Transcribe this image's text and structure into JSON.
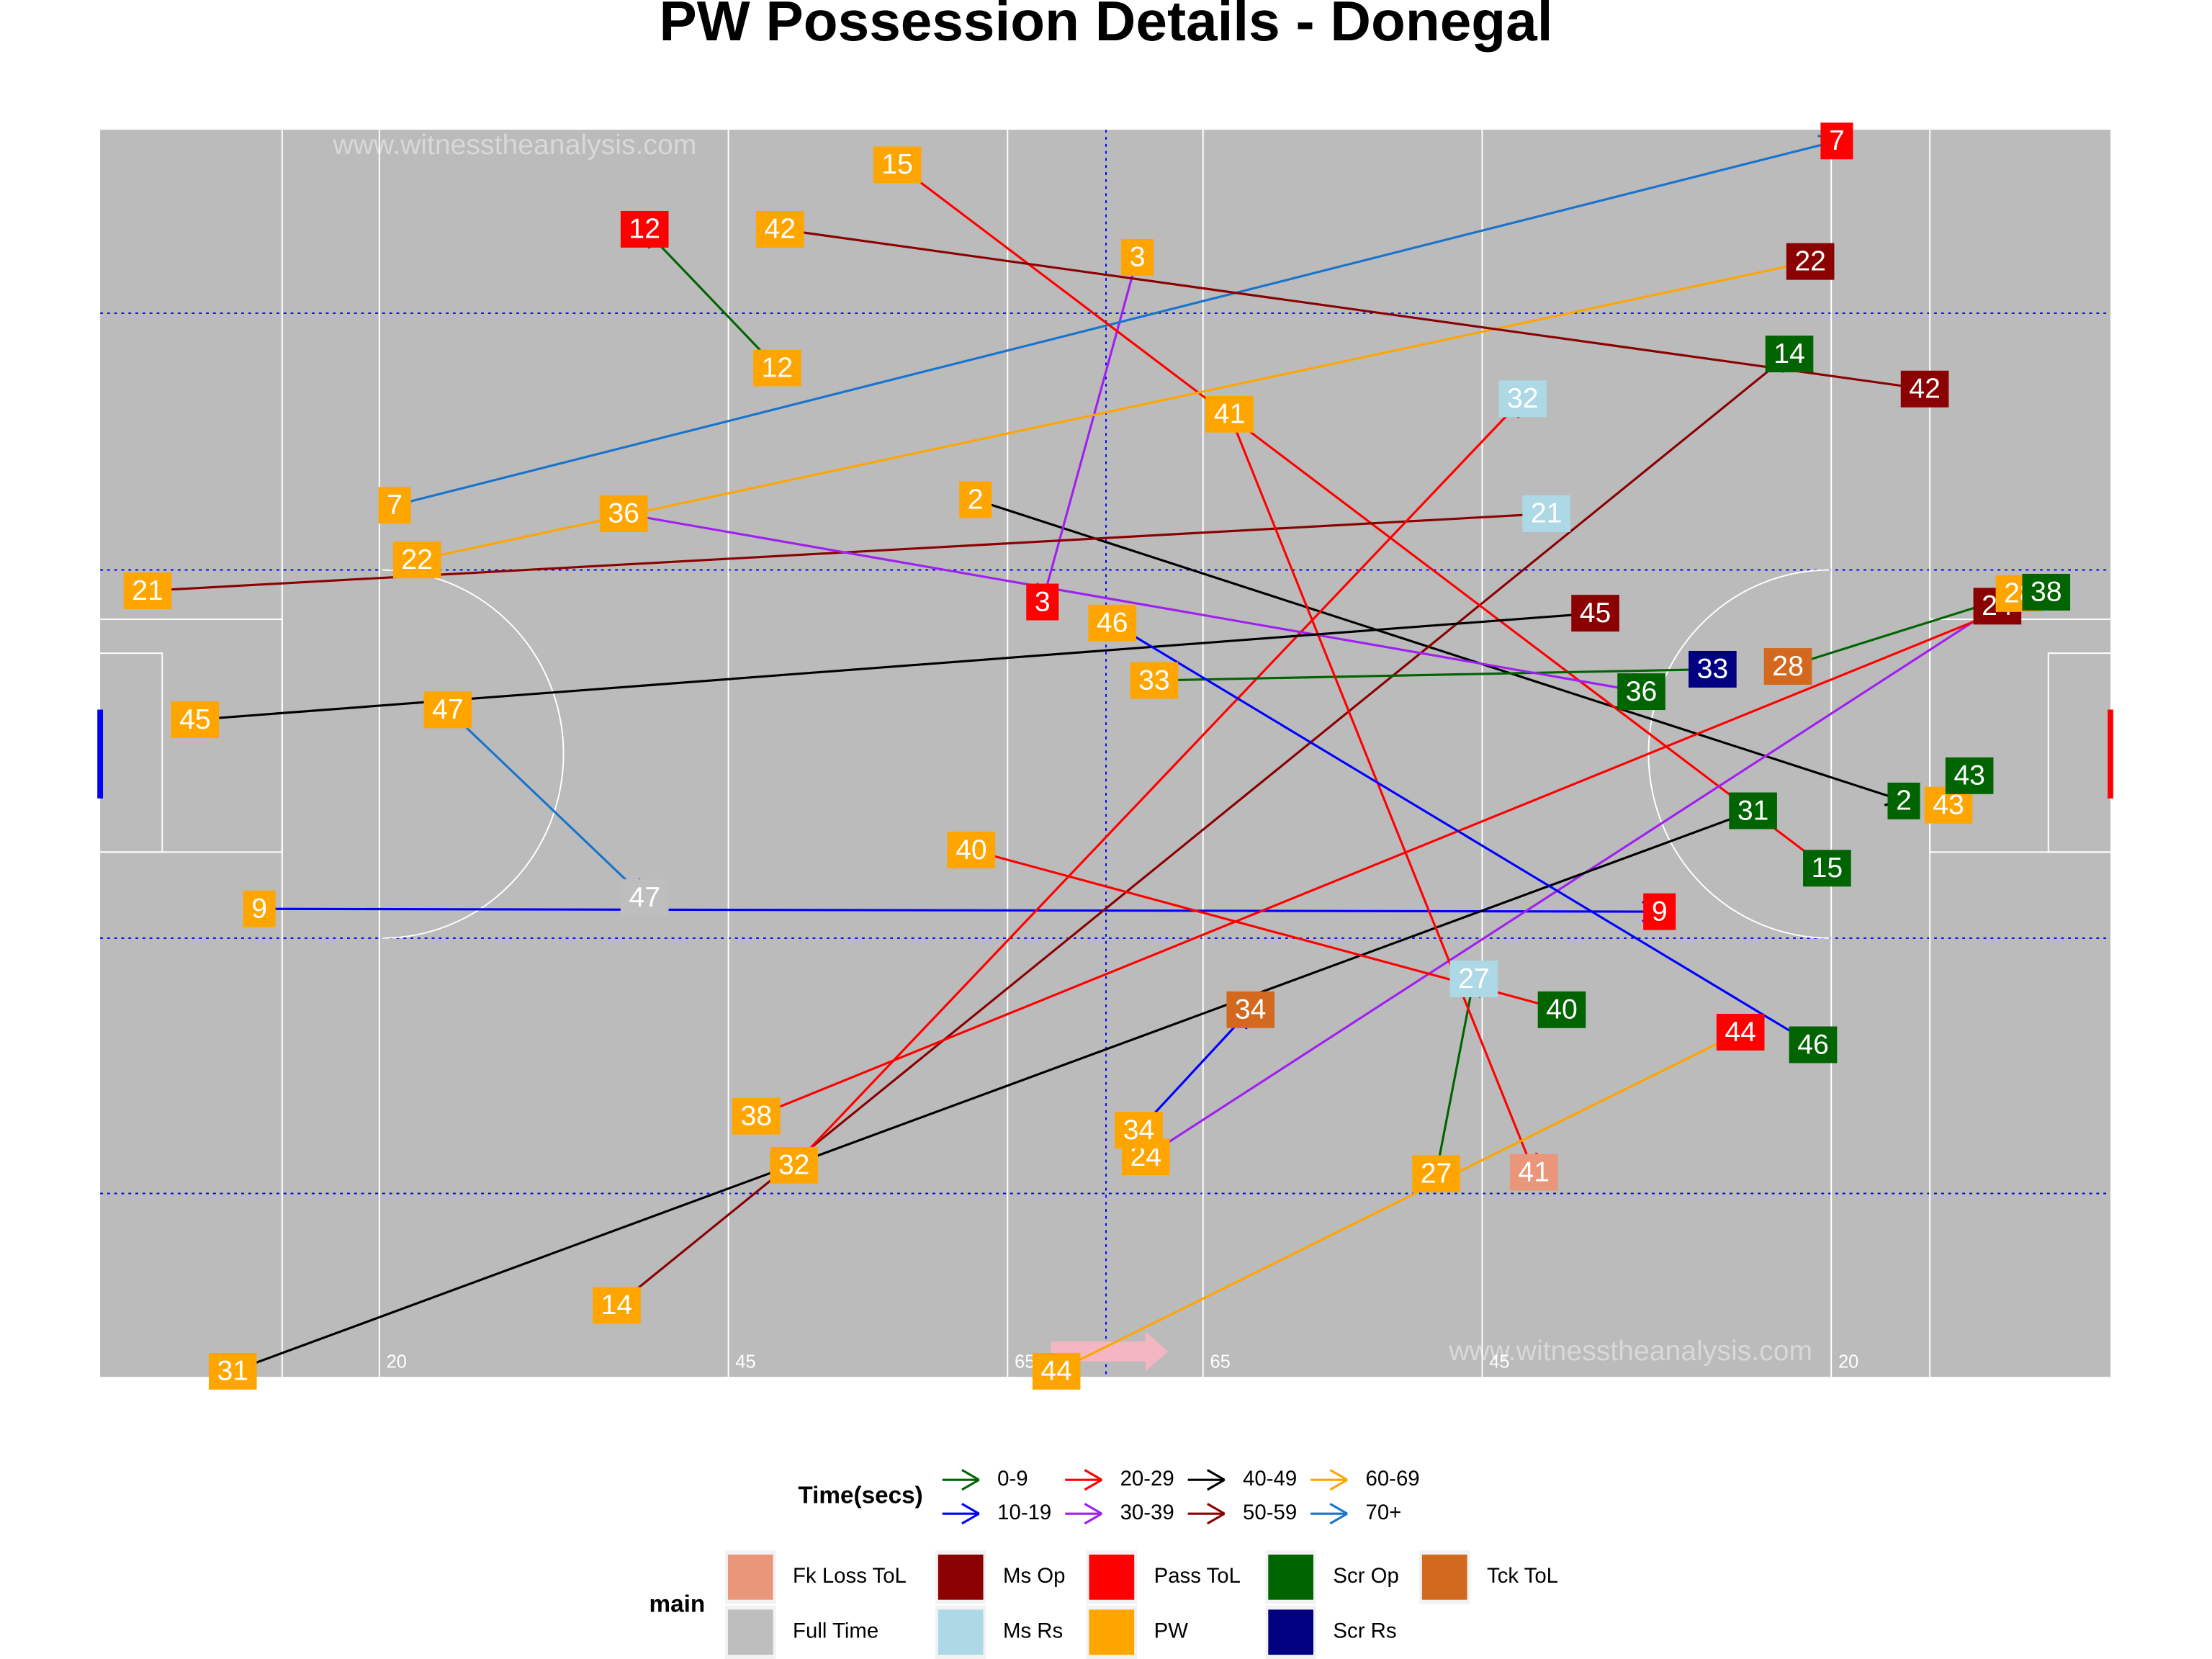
{
  "chart_data": {
    "type": "arrow",
    "title": "PW Possession Details - Donegal",
    "watermark": "www.witnesstheanalysis.com",
    "xlim": [
      0,
      144
    ],
    "ylim": [
      0,
      89
    ],
    "xticks": [
      20,
      45,
      65,
      {
        "value": 79,
        "label": "65"
      },
      {
        "value": 99,
        "label": "45"
      },
      {
        "value": 124,
        "label": "20"
      }
    ],
    "time_title": "Time(secs)",
    "main_title": "main",
    "time_legend": [
      {
        "name": "0-9",
        "color": "#006400"
      },
      {
        "name": "10-19",
        "color": "#0000ff"
      },
      {
        "name": "20-29",
        "color": "#ff0000"
      },
      {
        "name": "30-39",
        "color": "#a020f0"
      },
      {
        "name": "40-49",
        "color": "#000000"
      },
      {
        "name": "50-59",
        "color": "#8b0000"
      },
      {
        "name": "60-69",
        "color": "#ffa500"
      },
      {
        "name": "70+",
        "color": "#1874cd"
      }
    ],
    "main_legend": [
      {
        "name": "Fk Loss ToL",
        "color": "#e9967a"
      },
      {
        "name": "Full Time",
        "color": "#bebebe"
      },
      {
        "name": "Ms Op",
        "color": "#8b0000"
      },
      {
        "name": "Ms Rs",
        "color": "#add8e6"
      },
      {
        "name": "Pass ToL",
        "color": "#ff0000"
      },
      {
        "name": "PW",
        "color": "#ffa500"
      },
      {
        "name": "Scr Op",
        "color": "#006400"
      },
      {
        "name": "Scr Rs",
        "color": "#000080"
      },
      {
        "name": "Tck ToL",
        "color": "#d2691e"
      }
    ],
    "possessions": [
      {
        "id": 2,
        "x": [
          62.7,
          129.2
        ],
        "y": [
          62.6,
          41.1
        ],
        "main": [
          "PW",
          "Scr Op"
        ],
        "time": "40-49"
      },
      {
        "id": 3,
        "x": [
          74.3,
          67.5
        ],
        "y": [
          79.9,
          55.3
        ],
        "main": [
          "PW",
          "Pass ToL"
        ],
        "time": "30-39"
      },
      {
        "id": 7,
        "x": [
          21.1,
          124.4
        ],
        "y": [
          62.2,
          88.2
        ],
        "main": [
          "PW",
          "Pass ToL"
        ],
        "time": "70+"
      },
      {
        "id": 9,
        "x": [
          11.4,
          111.7
        ],
        "y": [
          33.4,
          33.2
        ],
        "main": [
          "PW",
          "Pass ToL"
        ],
        "time": "10-19"
      },
      {
        "id": 12,
        "x": [
          48.5,
          39.0
        ],
        "y": [
          72.0,
          81.9
        ],
        "main": [
          "PW",
          "Pass ToL"
        ],
        "time": "0-9"
      },
      {
        "id": 14,
        "x": [
          37.0,
          121.0
        ],
        "y": [
          5.1,
          73.0
        ],
        "main": [
          "PW",
          "Scr Op"
        ],
        "time": "50-59"
      },
      {
        "id": 15,
        "x": [
          57.1,
          123.7
        ],
        "y": [
          86.5,
          36.3
        ],
        "main": [
          "PW",
          "Scr Op"
        ],
        "time": "20-29"
      },
      {
        "id": 21,
        "x": [
          3.4,
          103.6
        ],
        "y": [
          56.1,
          61.6
        ],
        "main": [
          "PW",
          "Ms Rs"
        ],
        "time": "50-59"
      },
      {
        "id": 22,
        "x": [
          22.7,
          122.5
        ],
        "y": [
          58.3,
          79.6
        ],
        "main": [
          "PW",
          "Ms Op"
        ],
        "time": "60-69"
      },
      {
        "id": 24,
        "x": [
          74.9,
          135.9
        ],
        "y": [
          15.7,
          55.0
        ],
        "main": [
          "PW",
          "Ms Op"
        ],
        "time": "30-39"
      },
      {
        "id": 27,
        "x": [
          95.7,
          98.4
        ],
        "y": [
          14.5,
          28.4
        ],
        "main": [
          "PW",
          "Ms Rs"
        ],
        "time": "0-9"
      },
      {
        "id": 28,
        "x": [
          137.5,
          120.9
        ],
        "y": [
          55.9,
          50.7
        ],
        "main": [
          "PW",
          "Tck ToL"
        ],
        "time": "0-9"
      },
      {
        "id": 31,
        "x": [
          9.5,
          118.4
        ],
        "y": [
          0.4,
          40.4
        ],
        "main": [
          "PW",
          "Scr Op"
        ],
        "time": "40-49"
      },
      {
        "id": 32,
        "x": [
          49.7,
          101.9
        ],
        "y": [
          15.1,
          69.8
        ],
        "main": [
          "PW",
          "Ms Rs"
        ],
        "time": "20-29"
      },
      {
        "id": 33,
        "x": [
          75.5,
          115.5
        ],
        "y": [
          49.7,
          50.5
        ],
        "main": [
          "PW",
          "Scr Rs"
        ],
        "time": "0-9"
      },
      {
        "id": 34,
        "x": [
          74.4,
          82.4
        ],
        "y": [
          17.6,
          26.2
        ],
        "main": [
          "PW",
          "Tck ToL"
        ],
        "time": "10-19"
      },
      {
        "id": 36,
        "x": [
          37.5,
          110.4
        ],
        "y": [
          61.6,
          48.9
        ],
        "main": [
          "PW",
          "Scr Op"
        ],
        "time": "30-39"
      },
      {
        "id": 38,
        "x": [
          47.0,
          139.4
        ],
        "y": [
          18.6,
          56.0
        ],
        "main": [
          "PW",
          "Scr Op"
        ],
        "time": "20-29"
      },
      {
        "id": 40,
        "x": [
          62.4,
          104.7
        ],
        "y": [
          37.6,
          26.2
        ],
        "main": [
          "PW",
          "Scr Op"
        ],
        "time": "20-29"
      },
      {
        "id": 41,
        "x": [
          80.9,
          102.7
        ],
        "y": [
          68.7,
          14.6
        ],
        "main": [
          "PW",
          "Fk Loss ToL"
        ],
        "time": "20-29"
      },
      {
        "id": 42,
        "x": [
          48.7,
          130.7
        ],
        "y": [
          81.9,
          70.5
        ],
        "main": [
          "PW",
          "Ms Op"
        ],
        "time": "50-59"
      },
      {
        "id": 43,
        "x": [
          132.4,
          133.9
        ],
        "y": [
          40.8,
          42.9
        ],
        "main": [
          "PW",
          "Scr Op"
        ],
        "time": "0-9"
      },
      {
        "id": 44,
        "x": [
          68.5,
          117.5
        ],
        "y": [
          0.4,
          24.6
        ],
        "main": [
          "PW",
          "Pass ToL"
        ],
        "time": "60-69"
      },
      {
        "id": 45,
        "x": [
          6.8,
          107.1
        ],
        "y": [
          46.9,
          54.5
        ],
        "main": [
          "PW",
          "Ms Op"
        ],
        "time": "40-49"
      },
      {
        "id": 46,
        "x": [
          72.5,
          122.7
        ],
        "y": [
          53.8,
          23.7
        ],
        "main": [
          "PW",
          "Scr Op"
        ],
        "time": "10-19"
      },
      {
        "id": 47,
        "x": [
          24.9,
          39.0
        ],
        "y": [
          47.6,
          34.2
        ],
        "main": [
          "PW",
          "Full Time"
        ],
        "time": "70+"
      }
    ]
  }
}
